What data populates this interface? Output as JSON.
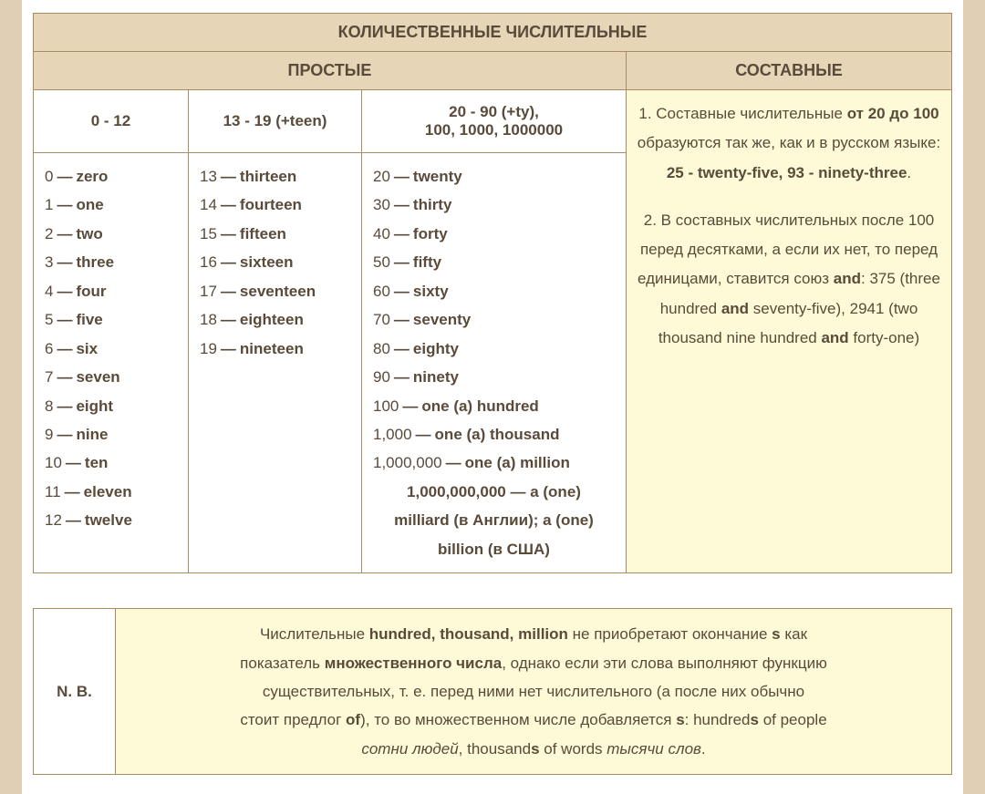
{
  "colors": {
    "page_bg": "#e0cfb5",
    "sheet_bg": "#ffffff",
    "header_bg": "#e7d5b8",
    "note_bg": "#fdfbd7",
    "border": "#a88c65",
    "text": "#5a4a3a"
  },
  "main_table": {
    "title": "КОЛИЧЕСТВЕННЫЕ ЧИСЛИТЕЛЬНЫЕ",
    "simple_label": "ПРОСТЫЕ",
    "compound_label": "СОСТАВНЫЕ",
    "col1_header": "0 - 12",
    "col2_header": "13 - 19 (+teen)",
    "col3_header_line1": "20 - 90 (+ty),",
    "col3_header_line2": "100, 1000, 1000000",
    "col1_items": [
      {
        "n": "0",
        "w": "zero"
      },
      {
        "n": "1",
        "w": "one"
      },
      {
        "n": "2",
        "w": "two"
      },
      {
        "n": "3",
        "w": "three"
      },
      {
        "n": "4",
        "w": "four"
      },
      {
        "n": "5",
        "w": "five"
      },
      {
        "n": "6",
        "w": "six"
      },
      {
        "n": "7",
        "w": "seven"
      },
      {
        "n": "8",
        "w": "eight"
      },
      {
        "n": "9",
        "w": "nine"
      },
      {
        "n": "10",
        "w": "ten"
      },
      {
        "n": "11",
        "w": "eleven"
      },
      {
        "n": "12",
        "w": "twelve"
      }
    ],
    "col2_items": [
      {
        "n": "13",
        "w": "thirteen"
      },
      {
        "n": "14",
        "w": "fourteen"
      },
      {
        "n": "15",
        "w": "fifteen"
      },
      {
        "n": "16",
        "w": "sixteen"
      },
      {
        "n": "17",
        "w": "seventeen"
      },
      {
        "n": "18",
        "w": "eighteen"
      },
      {
        "n": "19",
        "w": "nineteen"
      }
    ],
    "col3_items": [
      {
        "n": "20",
        "w": "twenty"
      },
      {
        "n": "30",
        "w": "thirty"
      },
      {
        "n": "40",
        "w": "forty"
      },
      {
        "n": "50",
        "w": "fifty"
      },
      {
        "n": "60",
        "w": "sixty"
      },
      {
        "n": "70",
        "w": "seventy"
      },
      {
        "n": "80",
        "w": "eighty"
      },
      {
        "n": "90",
        "w": "ninety"
      },
      {
        "n": "100",
        "w": "one (a) hundred"
      },
      {
        "n": "1,000",
        "w": "one (a) thousand"
      },
      {
        "n": "1,000,000",
        "w": "one (a) million"
      }
    ],
    "col3_extra_line1": "1,000,000,000 — a (one)",
    "col3_extra_line2": "milliard (в Англии); a (one)",
    "col3_extra_line3": "billion (в США)",
    "compound": {
      "p1_a": "1. Составные числительные ",
      "p1_b": "от 20 до 100",
      "p1_c": " образуются так же, как и в русском языке: ",
      "p1_d": "25 - twenty-five, 93 - ninety-three",
      "p1_e": ".",
      "p2_a": "2. В составных числительных после 100 перед десятками, а если их нет, то перед единицами, ставится союз ",
      "p2_b": "and",
      "p2_c": ": 375 (three hundred ",
      "p2_d": "and",
      "p2_e": " seventy-five), 2941 (two thousand nine hundred ",
      "p2_f": "and",
      "p2_g": " forty-one)"
    }
  },
  "note": {
    "label": "N. B.",
    "L1a": "Числительные ",
    "L1b": "hundred, thousand, million",
    "L1c": " не приобретают окончание ",
    "L1d": "s",
    "L1e": " как",
    "L2a": "показатель ",
    "L2b": "множественного числа",
    "L2c": ", однако если эти слова выполняют функцию",
    "L3": "существительных, т. е. перед ними нет числительного (а после них обычно",
    "L4a": "стоит предлог ",
    "L4b": "of",
    "L4c": "), то во множественном числе добавляется ",
    "L4d": "s",
    "L4e": ": hundred",
    "L4f": "s",
    "L4g": " of people",
    "L5a": "сотни людей",
    "L5b": ", thousand",
    "L5c": "s",
    "L5d": " of words ",
    "L5e": "тысячи слов",
    "L5f": "."
  }
}
